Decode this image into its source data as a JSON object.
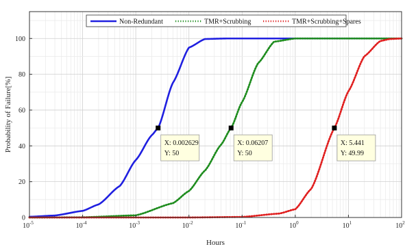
{
  "chart_data": {
    "type": "line",
    "xlabel": "Hours",
    "ylabel": "Probability of Failure[%]",
    "xscale": "log",
    "xlim": [
      1e-05,
      100
    ],
    "ylim": [
      0,
      115
    ],
    "grid": true,
    "legend_position": "top",
    "x_tick_labels": [
      {
        "base": "10",
        "exp": "-5"
      },
      {
        "base": "10",
        "exp": "-4"
      },
      {
        "base": "10",
        "exp": "-3"
      },
      {
        "base": "10",
        "exp": "-2"
      },
      {
        "base": "10",
        "exp": "-1"
      },
      {
        "base": "10",
        "exp": "0"
      },
      {
        "base": "10",
        "exp": "1"
      },
      {
        "base": "10",
        "exp": "2"
      }
    ],
    "y_ticks": [
      0,
      20,
      40,
      60,
      80,
      100
    ],
    "series": [
      {
        "name": "Non-Redundant",
        "color": "#1f1fe0",
        "style": "solid",
        "points": [
          [
            1e-05,
            0.4
          ],
          [
            3e-05,
            1.1
          ],
          [
            0.0001,
            3.7
          ],
          [
            0.0002,
            7.3
          ],
          [
            0.0005,
            17.6
          ],
          [
            0.001,
            32.1
          ],
          [
            0.002,
            46.0
          ],
          [
            0.002629,
            50.0
          ],
          [
            0.005,
            75.3
          ],
          [
            0.01,
            94.9
          ],
          [
            0.02,
            99.7
          ],
          [
            0.05,
            100
          ],
          [
            100,
            100
          ]
        ]
      },
      {
        "name": "TMR+Scrubbing",
        "color": "#1e8c1e",
        "style": "dotted",
        "points": [
          [
            1e-05,
            0
          ],
          [
            0.0001,
            0.1
          ],
          [
            0.001,
            1.2
          ],
          [
            0.005,
            8.0
          ],
          [
            0.01,
            14.8
          ],
          [
            0.02,
            26.2
          ],
          [
            0.04,
            40.6
          ],
          [
            0.06207,
            50.0
          ],
          [
            0.1,
            64.5
          ],
          [
            0.2,
            86.2
          ],
          [
            0.4,
            98.2
          ],
          [
            1,
            100
          ],
          [
            100,
            100
          ]
        ]
      },
      {
        "name": "TMR+Scrubbing+Spares",
        "color": "#e01f1f",
        "style": "dotted",
        "points": [
          [
            1e-05,
            0
          ],
          [
            0.01,
            0
          ],
          [
            0.1,
            0.3
          ],
          [
            0.5,
            2.2
          ],
          [
            1,
            4.6
          ],
          [
            2,
            16.0
          ],
          [
            5.441,
            49.99
          ],
          [
            10,
            70.5
          ],
          [
            20,
            90.1
          ],
          [
            40,
            98.6
          ],
          [
            60,
            99.7
          ],
          [
            100,
            100
          ]
        ]
      }
    ],
    "annotations": [
      {
        "series": "Non-Redundant",
        "x": 0.002629,
        "y": 50,
        "line1": "X: 0.002629",
        "line2": "Y: 50"
      },
      {
        "series": "TMR+Scrubbing",
        "x": 0.06207,
        "y": 50,
        "line1": "X: 0.06207",
        "line2": "Y: 50"
      },
      {
        "series": "TMR+Scrubbing+Spares",
        "x": 5.441,
        "y": 49.99,
        "line1": "X: 5.441",
        "line2": "Y: 49.99"
      }
    ]
  }
}
